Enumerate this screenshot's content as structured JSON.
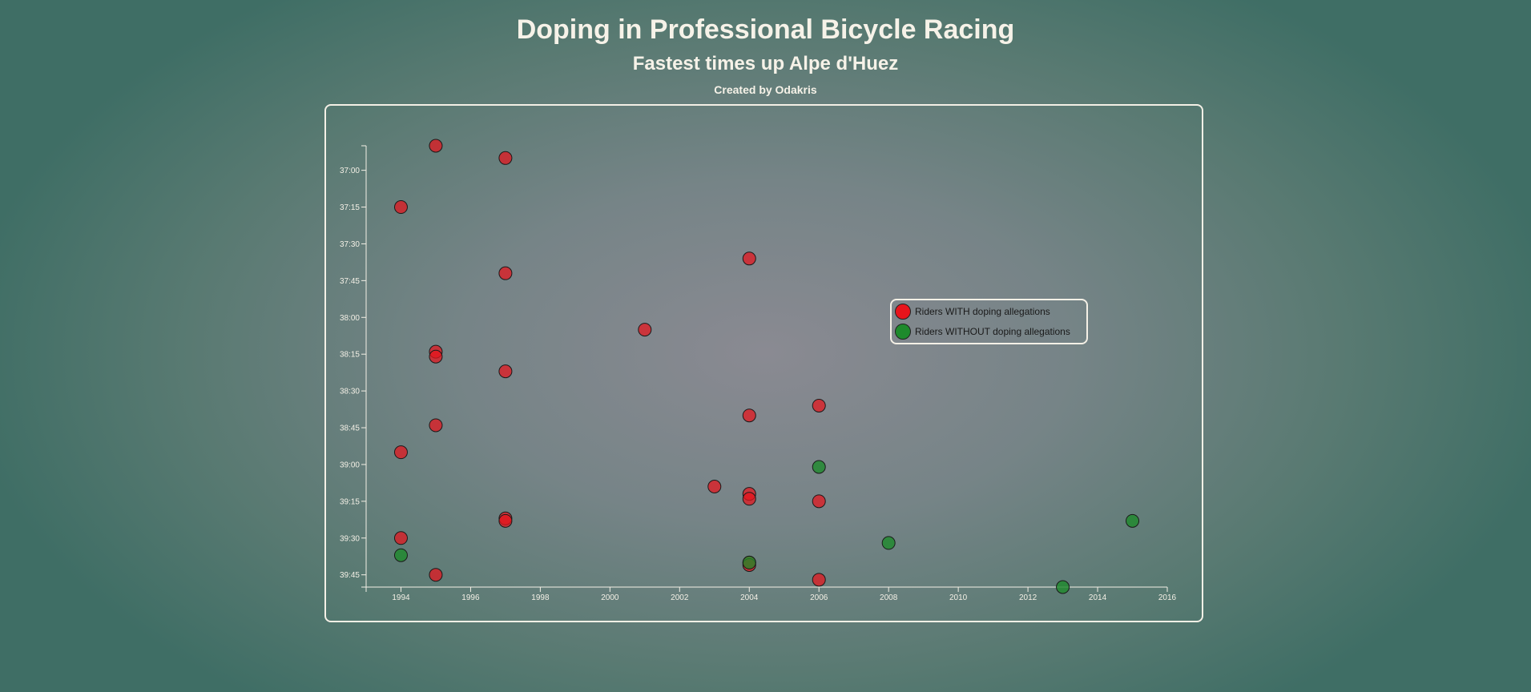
{
  "header": {
    "title": "Doping in Professional Bicycle Racing",
    "subtitle": "Fastest times up Alpe d'Huez",
    "credit": "Created by Odakris"
  },
  "colors": {
    "doping": "#e8141c",
    "no_doping": "#1e8a2c"
  },
  "chart_data": {
    "type": "scatter",
    "title": "Doping in Professional Bicycle Racing",
    "subtitle": "Fastest times up Alpe d'Huez",
    "xlabel": "",
    "ylabel": "",
    "x_ticks": [
      "1994",
      "1996",
      "1998",
      "2000",
      "2002",
      "2004",
      "2006",
      "2008",
      "2010",
      "2012",
      "2014",
      "2016"
    ],
    "y_ticks": [
      "37:00",
      "37:15",
      "37:30",
      "37:45",
      "38:00",
      "38:15",
      "38:30",
      "38:45",
      "39:00",
      "39:15",
      "39:30",
      "39:45"
    ],
    "xlim": [
      1993,
      2016
    ],
    "ylim_seconds": [
      2210,
      2390
    ],
    "y_inverted": true,
    "legend_position": "right",
    "legend": [
      {
        "label": "Riders WITH doping allegations",
        "color": "#e8141c"
      },
      {
        "label": "Riders WITHOUT doping allegations",
        "color": "#1e8a2c"
      }
    ],
    "series": [
      {
        "name": "Riders WITH doping allegations",
        "color": "#e8141c",
        "points": [
          {
            "x": 1995,
            "y": "36:50"
          },
          {
            "x": 1997,
            "y": "36:55"
          },
          {
            "x": 1994,
            "y": "37:15"
          },
          {
            "x": 2004,
            "y": "37:36"
          },
          {
            "x": 1997,
            "y": "37:42"
          },
          {
            "x": 2001,
            "y": "38:05"
          },
          {
            "x": 1995,
            "y": "38:14"
          },
          {
            "x": 1995,
            "y": "38:16"
          },
          {
            "x": 1997,
            "y": "38:22"
          },
          {
            "x": 2006,
            "y": "38:36"
          },
          {
            "x": 2004,
            "y": "38:40"
          },
          {
            "x": 1995,
            "y": "38:44"
          },
          {
            "x": 1994,
            "y": "38:55"
          },
          {
            "x": 2003,
            "y": "39:09"
          },
          {
            "x": 2004,
            "y": "39:12"
          },
          {
            "x": 2004,
            "y": "39:14"
          },
          {
            "x": 2006,
            "y": "39:15"
          },
          {
            "x": 1997,
            "y": "39:22"
          },
          {
            "x": 1997,
            "y": "39:23"
          },
          {
            "x": 1994,
            "y": "39:30"
          },
          {
            "x": 2004,
            "y": "39:40"
          },
          {
            "x": 2004,
            "y": "39:41"
          },
          {
            "x": 1995,
            "y": "39:45"
          },
          {
            "x": 2006,
            "y": "39:47"
          }
        ]
      },
      {
        "name": "Riders WITHOUT doping allegations",
        "color": "#1e8a2c",
        "points": [
          {
            "x": 2006,
            "y": "39:01"
          },
          {
            "x": 2015,
            "y": "39:23"
          },
          {
            "x": 2008,
            "y": "39:32"
          },
          {
            "x": 1994,
            "y": "39:37"
          },
          {
            "x": 2004,
            "y": "39:40"
          },
          {
            "x": 2013,
            "y": "39:50"
          }
        ]
      }
    ]
  }
}
